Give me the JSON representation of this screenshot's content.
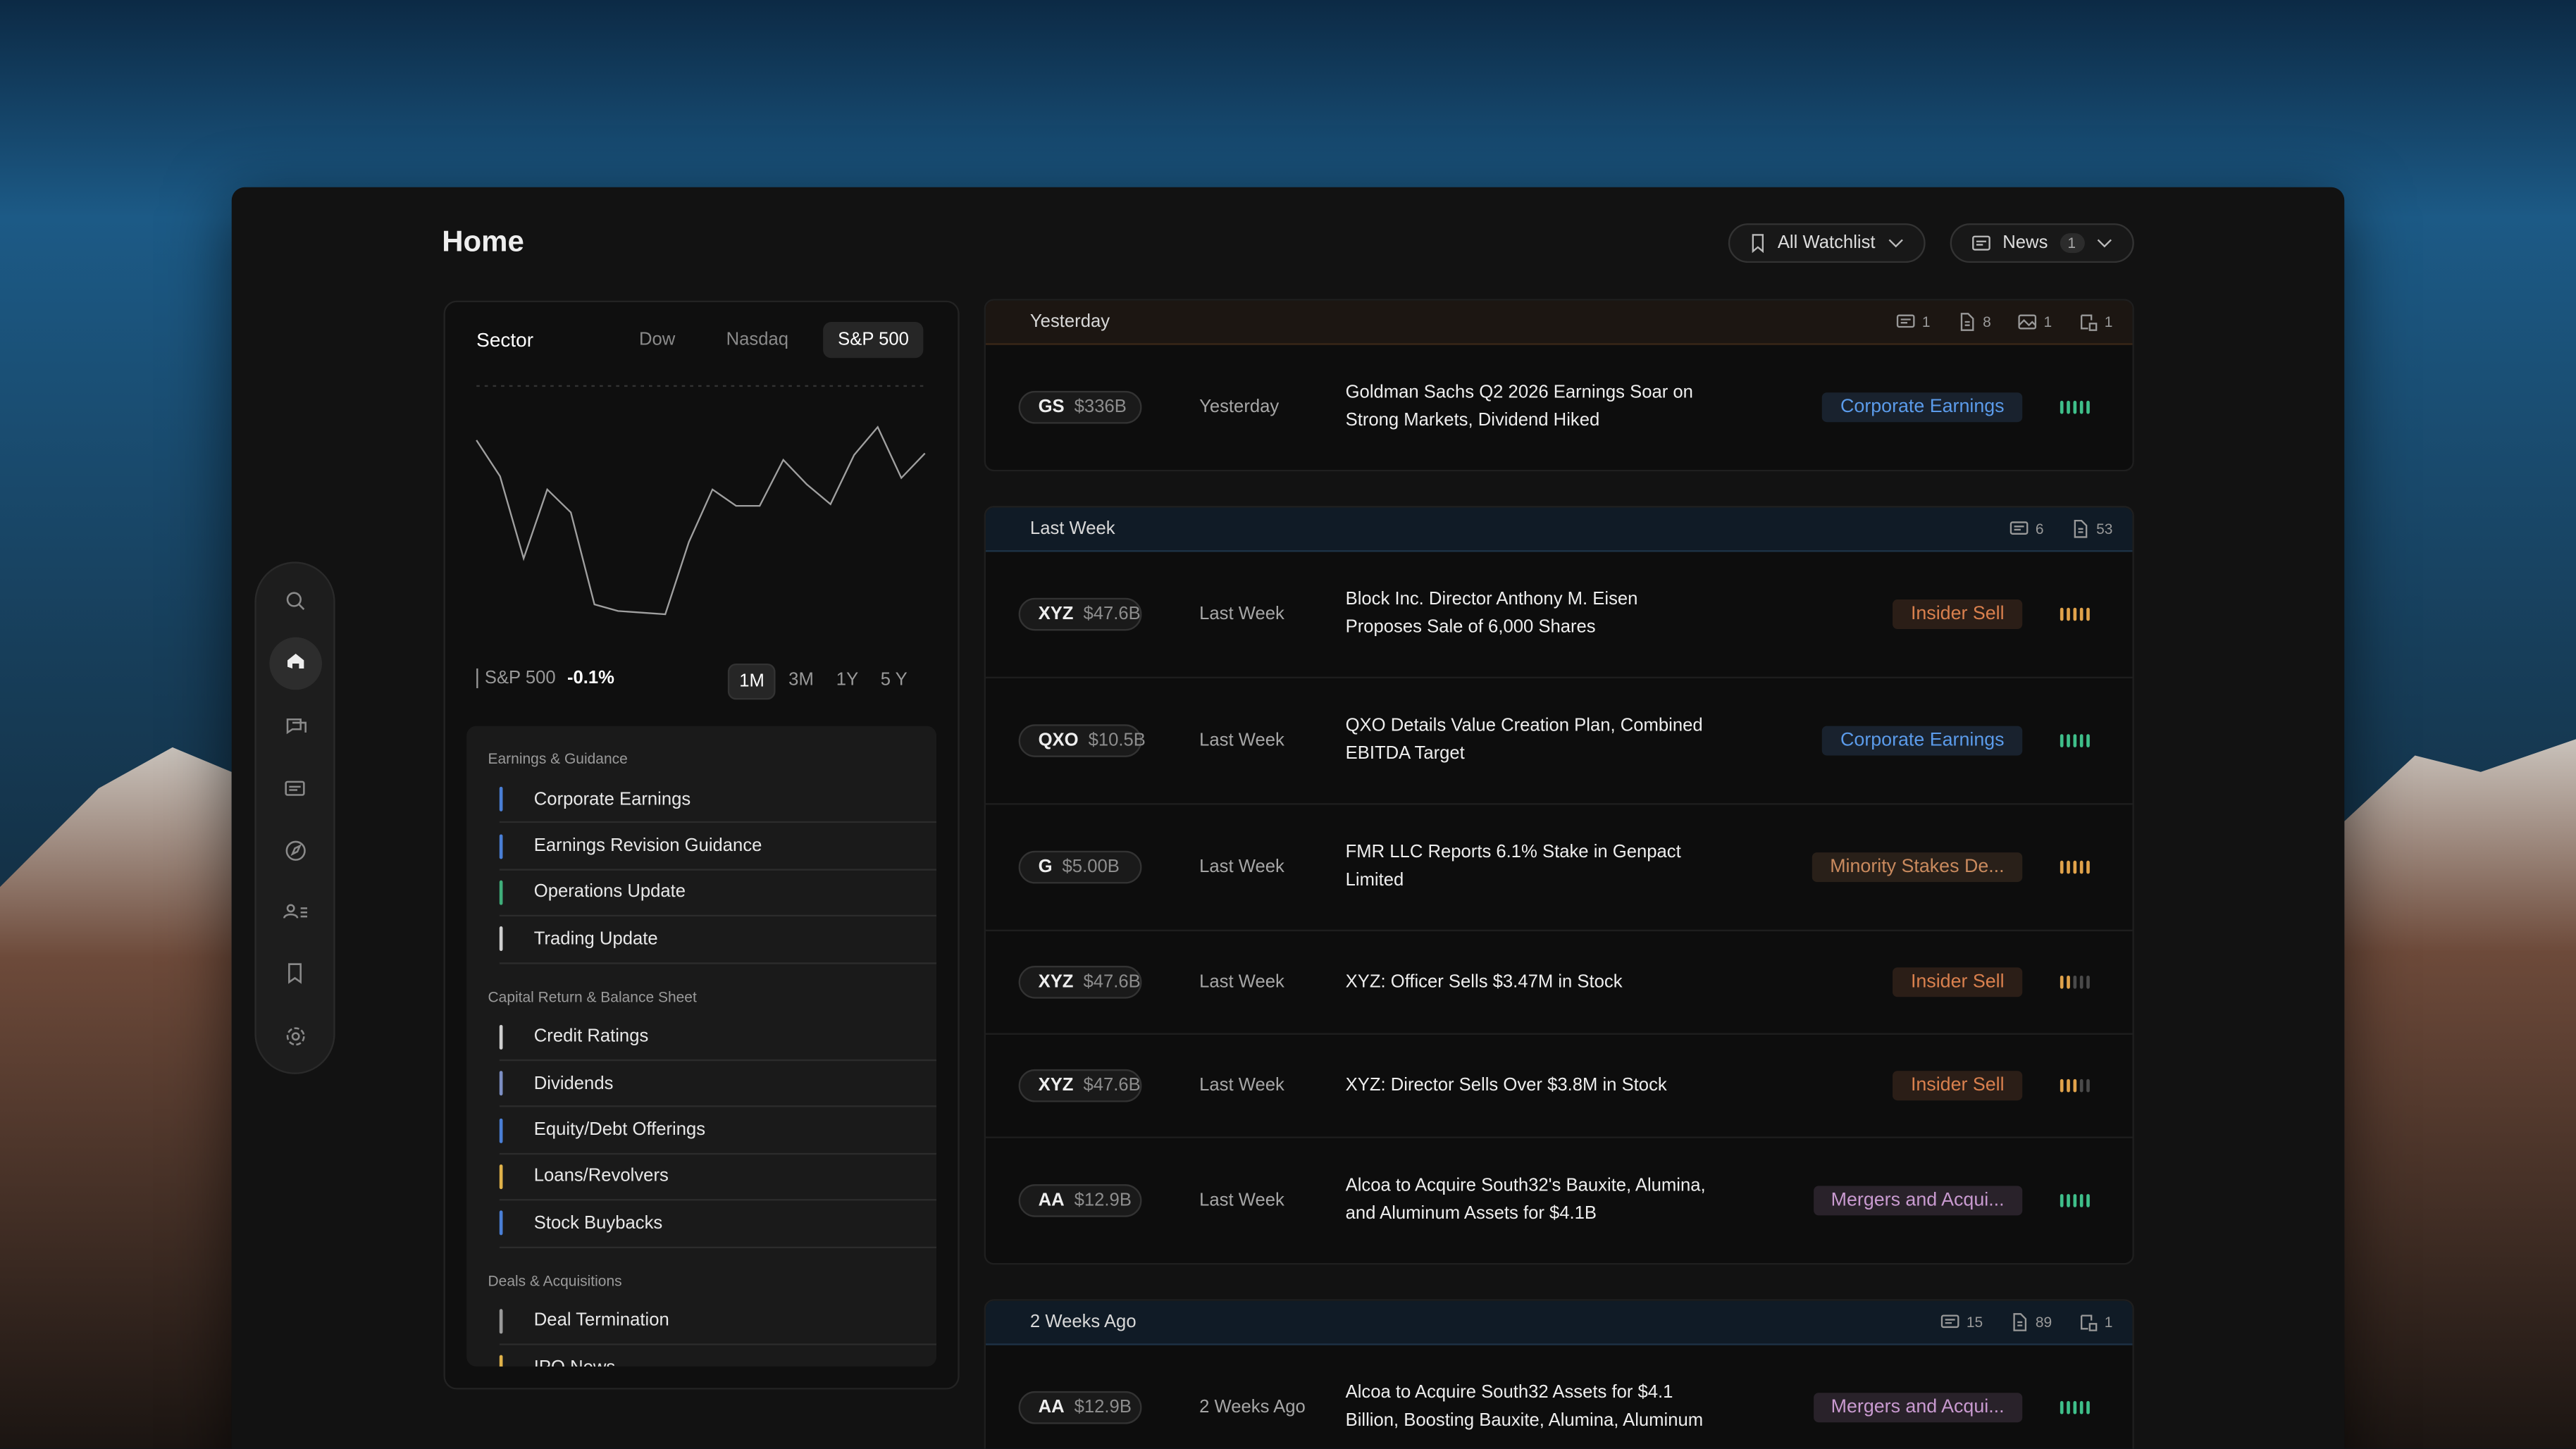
{
  "header": {
    "title": "Home",
    "watchlist": "All Watchlist",
    "news": "News",
    "news_count": 1
  },
  "sector": {
    "tabs": [
      "Sector",
      "Dow",
      "Nasdaq",
      "S&P 500"
    ],
    "active_tab": 3,
    "index_name": "S&P 500",
    "change": "-0.1%",
    "ranges": [
      "1M",
      "3M",
      "1Y",
      "5 Y"
    ],
    "active_range": 0,
    "chart": {
      "values": [
        107,
        85,
        35,
        77,
        63,
        7,
        3,
        2,
        1,
        45,
        77,
        67,
        67,
        95,
        80,
        68,
        98,
        115,
        84,
        99
      ],
      "ylim": [
        0,
        140
      ],
      "color": "#a0a0a0"
    }
  },
  "categories": [
    {
      "title": "Earnings & Guidance",
      "items": [
        {
          "label": "Corporate Earnings",
          "color": "#4a7fd6"
        },
        {
          "label": "Earnings Revision Guidance",
          "color": "#4a7fd6"
        },
        {
          "label": "Operations Update",
          "color": "#3fae7a"
        },
        {
          "label": "Trading Update",
          "color": "#cfcfcf"
        }
      ]
    },
    {
      "title": "Capital Return & Balance Sheet",
      "items": [
        {
          "label": "Credit Ratings",
          "color": "#cfcfcf"
        },
        {
          "label": "Dividends",
          "color": "#7d8fc4"
        },
        {
          "label": "Equity/Debt Offerings",
          "color": "#4a7fd6"
        },
        {
          "label": "Loans/Revolvers",
          "color": "#e0b24a"
        },
        {
          "label": "Stock Buybacks",
          "color": "#4a7fd6"
        }
      ]
    },
    {
      "title": "Deals & Acquisitions",
      "items": [
        {
          "label": "Deal Termination",
          "color": "#9a9a9a"
        },
        {
          "label": "IPO News",
          "color": "#e0b24a"
        }
      ]
    }
  ],
  "feed": [
    {
      "period": "Yesterday",
      "tone": "warm",
      "counts": [
        {
          "icon": "news",
          "count": 1
        },
        {
          "icon": "doc",
          "count": 8
        },
        {
          "icon": "image",
          "count": 1
        },
        {
          "icon": "filing",
          "count": 1
        }
      ],
      "items": [
        {
          "ticker": "GS",
          "mcap": "$336B",
          "time": "Yesterday",
          "headline": "Goldman Sachs Q2 2026 Earnings Soar on Strong Markets, Dividend Hiked",
          "tag": "Corporate Earnings",
          "tag_color": "#5b9bea",
          "signal": 5,
          "signal_color": "#3fbf8a"
        }
      ]
    },
    {
      "period": "Last Week",
      "tone": "cool",
      "counts": [
        {
          "icon": "news",
          "count": 6
        },
        {
          "icon": "doc",
          "count": 53
        }
      ],
      "items": [
        {
          "ticker": "XYZ",
          "mcap": "$47.6B",
          "time": "Last Week",
          "headline": "Block Inc. Director Anthony M. Eisen Proposes Sale of 6,000 Shares",
          "tag": "Insider Sell",
          "tag_color": "#d9804e",
          "signal": 5,
          "signal_color": "#e0a24a"
        },
        {
          "ticker": "QXO",
          "mcap": "$10.5B",
          "time": "Last Week",
          "headline": "QXO Details Value Creation Plan, Combined EBITDA Target",
          "tag": "Corporate Earnings",
          "tag_color": "#5b9bea",
          "signal": 5,
          "signal_color": "#3fbf8a"
        },
        {
          "ticker": "G",
          "mcap": "$5.00B",
          "time": "Last Week",
          "headline": "FMR LLC Reports 6.1% Stake in Genpact Limited",
          "tag": "Minority Stakes De...",
          "tag_color": "#c98a5e",
          "signal": 5,
          "signal_color": "#e0a24a"
        },
        {
          "ticker": "XYZ",
          "mcap": "$47.6B",
          "time": "Last Week",
          "headline": "XYZ: Officer Sells $3.47M in Stock",
          "tag": "Insider Sell",
          "tag_color": "#d9804e",
          "signal": 2,
          "signal_color": "#e0a24a"
        },
        {
          "ticker": "XYZ",
          "mcap": "$47.6B",
          "time": "Last Week",
          "headline": "XYZ: Director Sells Over $3.8M in Stock",
          "tag": "Insider Sell",
          "tag_color": "#d9804e",
          "signal": 3,
          "signal_color": "#e0a24a"
        },
        {
          "ticker": "AA",
          "mcap": "$12.9B",
          "time": "Last Week",
          "headline": "Alcoa to Acquire South32's Bauxite, Alumina, and Aluminum Assets for $4.1B",
          "tag": "Mergers and Acqui...",
          "tag_color": "#c99ad0",
          "signal": 5,
          "signal_color": "#3fbf8a"
        }
      ]
    },
    {
      "period": "2 Weeks Ago",
      "tone": "cool",
      "counts": [
        {
          "icon": "news",
          "count": 15
        },
        {
          "icon": "doc",
          "count": 89
        },
        {
          "icon": "filing",
          "count": 1
        }
      ],
      "items": [
        {
          "ticker": "AA",
          "mcap": "$12.9B",
          "time": "2 Weeks Ago",
          "headline": "Alcoa to Acquire South32 Assets for $4.1 Billion, Boosting Bauxite, Alumina, Aluminum",
          "tag": "Mergers and Acqui...",
          "tag_color": "#c99ad0",
          "signal": 5,
          "signal_color": "#3fbf8a"
        }
      ]
    }
  ]
}
